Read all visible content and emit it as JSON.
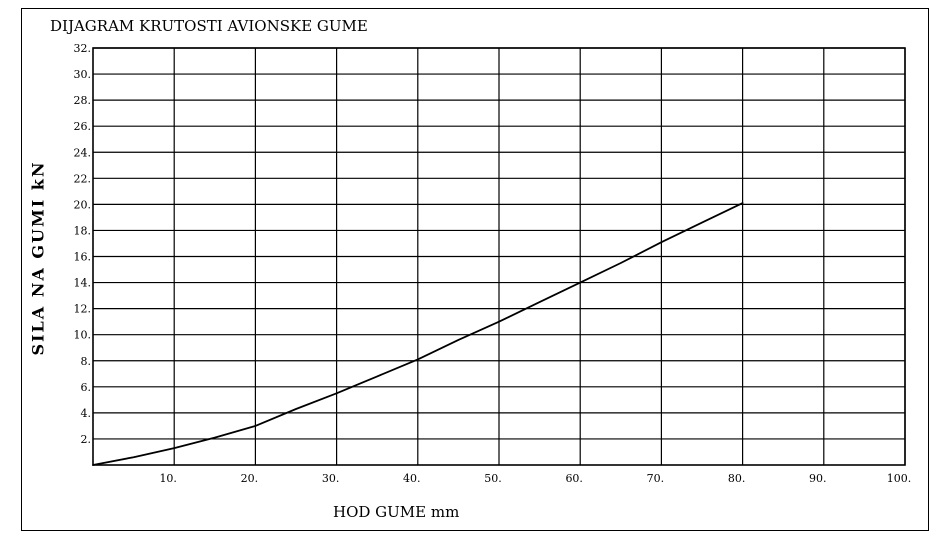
{
  "chart_data": {
    "type": "line",
    "title": "DIJAGRAM KRUTOSTI AVIONSKE GUME",
    "xlabel": "HOD GUME  mm",
    "ylabel": "SILA NA GUMI  kN",
    "xlim": [
      0,
      100
    ],
    "ylim": [
      0,
      32
    ],
    "x_ticks": [
      "10.",
      "20.",
      "30.",
      "40.",
      "50.",
      "60.",
      "70.",
      "80.",
      "90.",
      "100."
    ],
    "y_ticks": [
      "2.",
      "4.",
      "6.",
      "8.",
      "10.",
      "12.",
      "14.",
      "16.",
      "18.",
      "20.",
      "22.",
      "24.",
      "26.",
      "28.",
      "30.",
      "32."
    ],
    "grid": true,
    "x_tick_values": [
      10,
      20,
      30,
      40,
      50,
      60,
      70,
      80,
      90,
      100
    ],
    "y_tick_values": [
      2,
      4,
      6,
      8,
      10,
      12,
      14,
      16,
      18,
      20,
      22,
      24,
      26,
      28,
      30,
      32
    ],
    "series": [
      {
        "x": [
          0,
          5,
          10,
          15,
          20,
          25,
          30,
          35,
          40,
          45,
          50,
          55,
          60,
          65,
          70,
          75,
          80
        ],
        "y": [
          0,
          0.6,
          1.3,
          2.1,
          3.0,
          4.3,
          5.5,
          6.8,
          8.1,
          9.6,
          11.0,
          12.5,
          14.0,
          15.5,
          17.1,
          18.6,
          20.1
        ],
        "color": "#000000"
      }
    ]
  }
}
